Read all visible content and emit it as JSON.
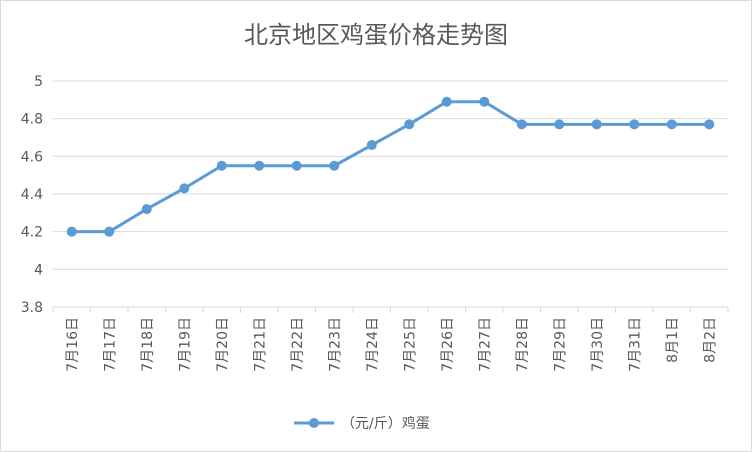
{
  "chart_data": {
    "type": "line",
    "title": "北京地区鸡蛋价格走势图",
    "categories": [
      "7月16日",
      "7月17日",
      "7月18日",
      "7月19日",
      "7月20日",
      "7月21日",
      "7月22日",
      "7月23日",
      "7月24日",
      "7月25日",
      "7月26日",
      "7月27日",
      "7月28日",
      "7月29日",
      "7月30日",
      "7月31日",
      "8月1日",
      "8月2日"
    ],
    "series": [
      {
        "name": "（元/斤）鸡蛋",
        "values": [
          4.2,
          4.2,
          4.32,
          4.43,
          4.55,
          4.55,
          4.55,
          4.55,
          4.66,
          4.77,
          4.89,
          4.89,
          4.77,
          4.77,
          4.77,
          4.77,
          4.77,
          4.77
        ]
      }
    ],
    "ylim": [
      3.8,
      5
    ],
    "yticks": [
      3.8,
      4,
      4.2,
      4.4,
      4.6,
      4.8,
      5
    ],
    "ytick_labels": [
      "3.8",
      "4",
      "4.2",
      "4.4",
      "4.6",
      "4.8",
      "5"
    ],
    "grid": true,
    "legend": "bottom",
    "line_color": "#5b9bd5",
    "grid_color": "#d9d9d9",
    "text_color": "#595959"
  }
}
